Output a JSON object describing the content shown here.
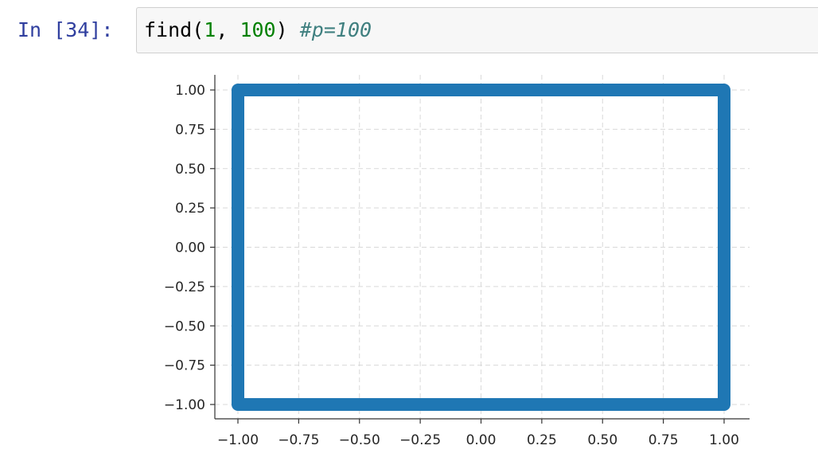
{
  "cell": {
    "prompt": "In [34]:",
    "code": {
      "func_name": "find",
      "open_paren": "(",
      "arg1": "1",
      "sep": ", ",
      "arg2": "100",
      "close_paren": ")",
      "space": " ",
      "comment": "#p=100"
    }
  },
  "chart_data": {
    "type": "line",
    "title": "",
    "xlabel": "",
    "ylabel": "",
    "xlim": [
      -1.04,
      1.09
    ],
    "ylim": [
      -1.08,
      1.07
    ],
    "grid": true,
    "grid_style": "dashed",
    "line_color": "#1f77b4",
    "series": [
      {
        "x": [
          -1.0,
          1.0,
          1.0,
          -1.0,
          -1.0
        ],
        "y": [
          1.0,
          1.0,
          -1.0,
          -1.0,
          1.0
        ]
      }
    ],
    "xticks": [
      -1.0,
      -0.75,
      -0.5,
      -0.25,
      0.0,
      0.25,
      0.5,
      0.75,
      1.0
    ],
    "xtick_labels": [
      "−1.00",
      "−0.75",
      "−0.50",
      "−0.25",
      "0.00",
      "0.25",
      "0.50",
      "0.75",
      "1.00"
    ],
    "yticks": [
      1.0,
      0.75,
      0.5,
      0.25,
      0.0,
      -0.25,
      -0.5,
      -0.75,
      -1.0
    ],
    "ytick_labels": [
      "1.00",
      "0.75",
      "0.50",
      "0.25",
      "0.00",
      "−0.25",
      "−0.50",
      "−0.75",
      "−1.00"
    ]
  }
}
